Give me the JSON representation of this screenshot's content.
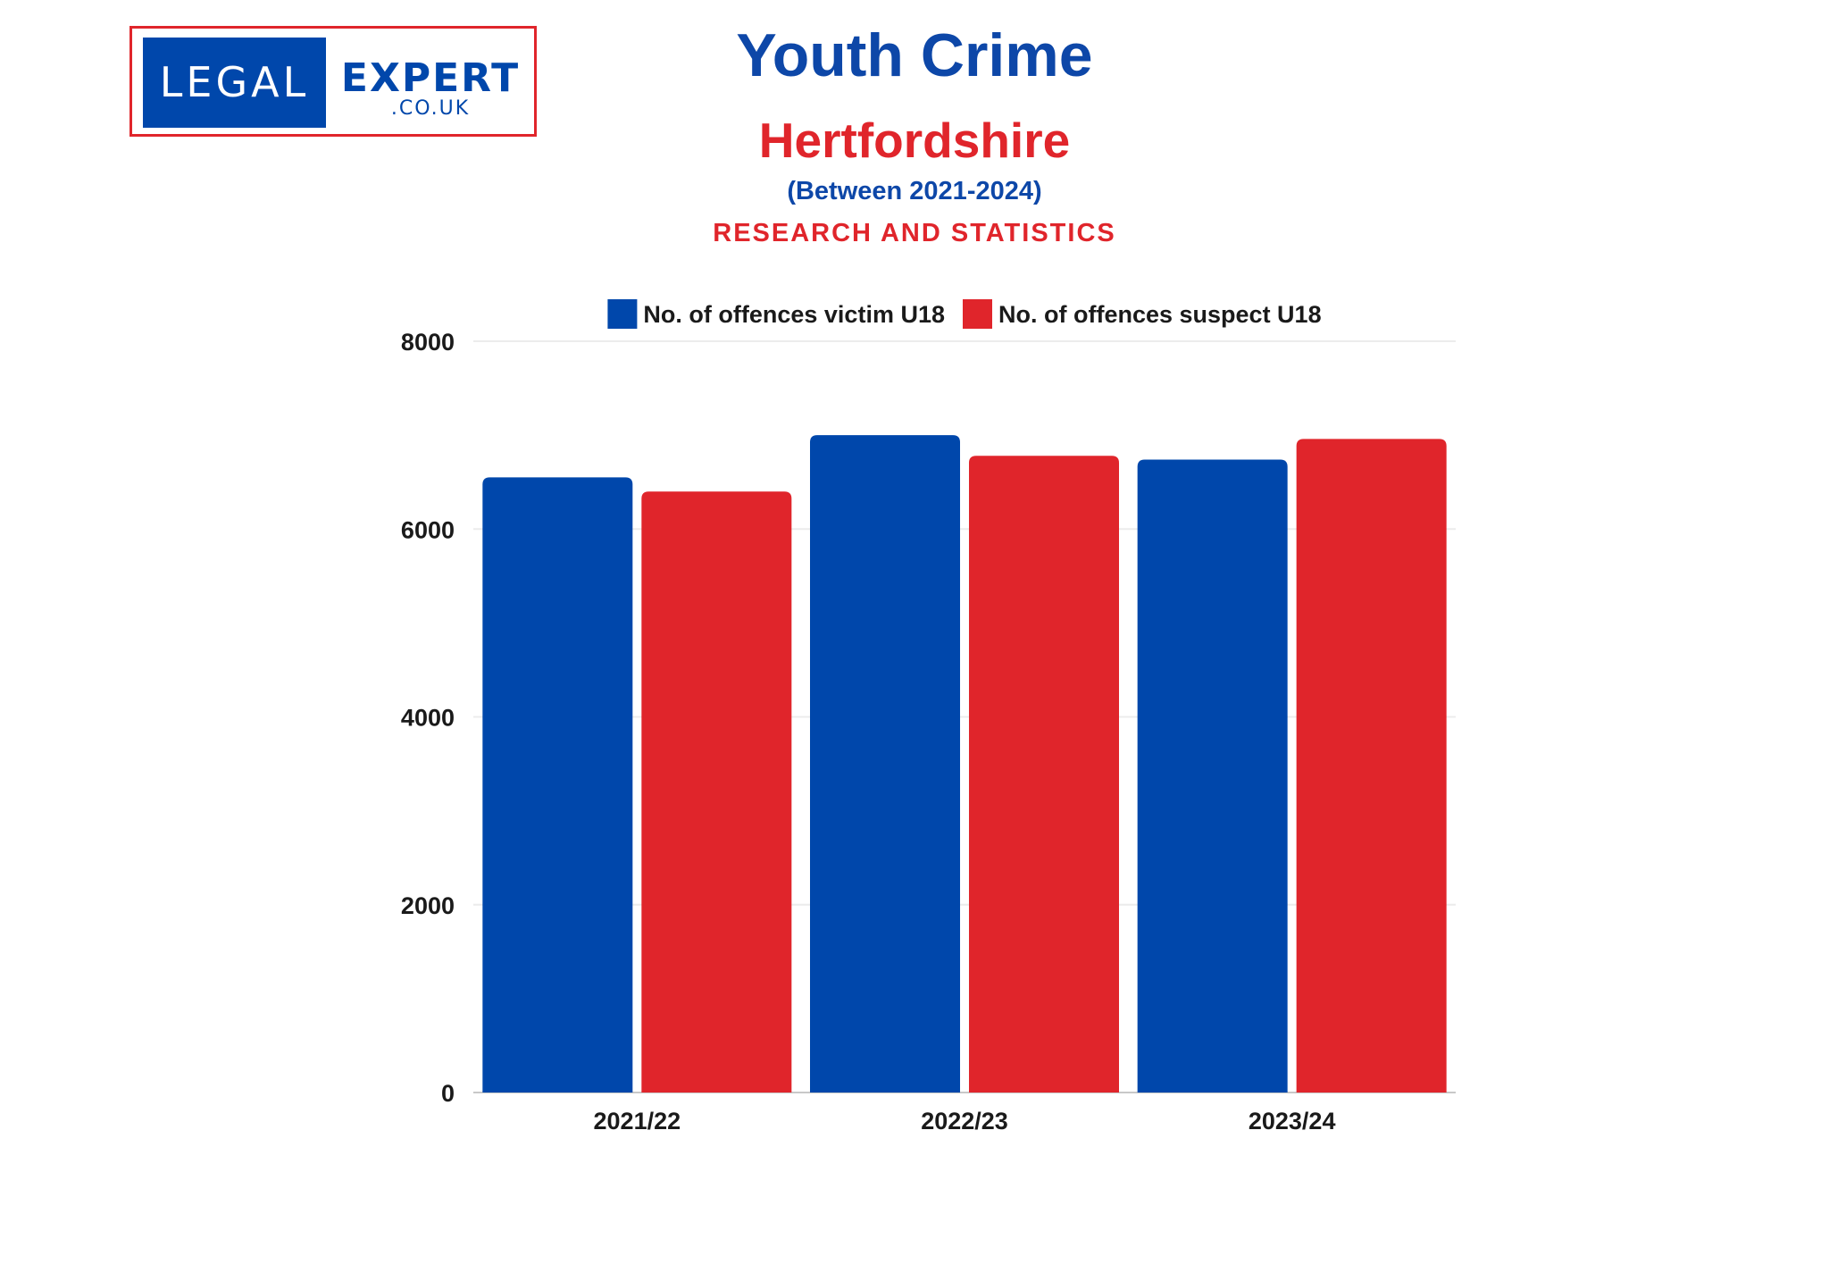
{
  "logo": {
    "left_text": "LEGAL",
    "right_text": "EXPERT",
    "sub_text": ".CO.UK",
    "colors": {
      "blue": "#0047ab",
      "red": "#e0252b"
    }
  },
  "header": {
    "title": "Youth Crime",
    "subtitle": "Hertfordshire",
    "period": "(Between 2021-2024)",
    "tagline": "RESEARCH AND STATISTICS"
  },
  "chart_data": {
    "type": "bar",
    "categories": [
      "2021/22",
      "2022/23",
      "2023/24"
    ],
    "series": [
      {
        "name": "No. of offences victim U18",
        "color": "#0047ab",
        "values": [
          6550,
          7000,
          6740
        ]
      },
      {
        "name": "No. of offences suspect U18",
        "color": "#e0252b",
        "values": [
          6400,
          6780,
          6960
        ]
      }
    ],
    "ylim": [
      0,
      8000
    ],
    "yticks": [
      "0",
      "2000",
      "4000",
      "6000",
      "8000"
    ],
    "grid": true,
    "legend_position": "top"
  }
}
